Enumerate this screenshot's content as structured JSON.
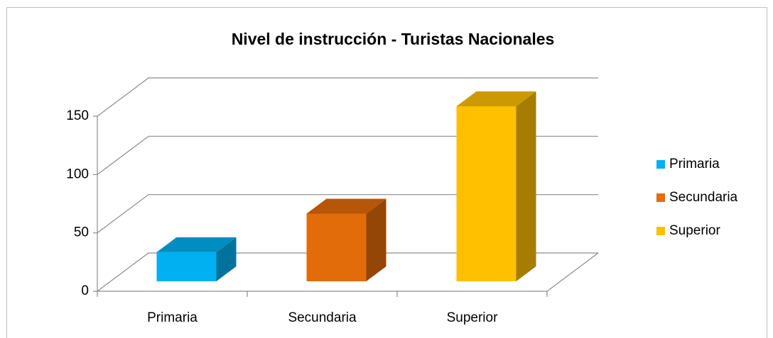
{
  "chart_data": {
    "type": "bar3d",
    "title": "Nivel de instrucción - Turistas Nacionales",
    "categories": [
      "Primaria",
      "Secundaria",
      "Superior"
    ],
    "values": [
      25,
      58,
      150
    ],
    "colors": [
      "#00b0f0",
      "#e36c0a",
      "#ffc000"
    ],
    "ylim": [
      0,
      150
    ],
    "yticks": [
      0,
      50,
      100,
      150
    ],
    "grid": true,
    "legend": "right"
  }
}
